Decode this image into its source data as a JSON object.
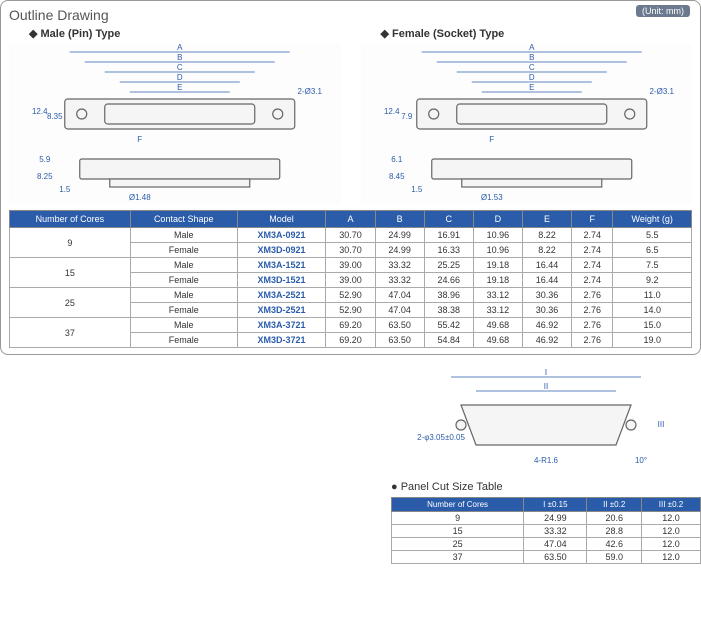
{
  "title": "Outline Drawing",
  "unit": "(Unit: mm)",
  "male_header": "Male (Pin) Type",
  "female_header": "Female (Socket) Type",
  "dim_labels": {
    "a": "A",
    "b": "B",
    "c": "C",
    "d": "D",
    "e": "E",
    "f": "F",
    "h1": "12.4",
    "h2": "8.35",
    "h3": "5.9",
    "h4": "8.25",
    "h5": "1.5",
    "d1": "Ø1.48",
    "hole": "2-Ø3.1",
    "fh1": "12.4",
    "fh2": "7.9",
    "fh3": "6.1",
    "fh4": "8.45",
    "fh5": "1.5",
    "fd1": "Ø1.53"
  },
  "main_headers": [
    "Number of Cores",
    "Contact Shape",
    "Model",
    "A",
    "B",
    "C",
    "D",
    "E",
    "F",
    "Weight (g)"
  ],
  "groups": [
    {
      "cores": "9",
      "rows": [
        {
          "shape": "Male",
          "model": "XM3A-0921",
          "a": "30.70",
          "b": "24.99",
          "c": "16.91",
          "d": "10.96",
          "e": "8.22",
          "f": "2.74",
          "w": "5.5"
        },
        {
          "shape": "Female",
          "model": "XM3D-0921",
          "a": "30.70",
          "b": "24.99",
          "c": "16.33",
          "d": "10.96",
          "e": "8.22",
          "f": "2.74",
          "w": "6.5"
        }
      ]
    },
    {
      "cores": "15",
      "rows": [
        {
          "shape": "Male",
          "model": "XM3A-1521",
          "a": "39.00",
          "b": "33.32",
          "c": "25.25",
          "d": "19.18",
          "e": "16.44",
          "f": "2.74",
          "w": "7.5"
        },
        {
          "shape": "Female",
          "model": "XM3D-1521",
          "a": "39.00",
          "b": "33.32",
          "c": "24.66",
          "d": "19.18",
          "e": "16.44",
          "f": "2.74",
          "w": "9.2"
        }
      ]
    },
    {
      "cores": "25",
      "rows": [
        {
          "shape": "Male",
          "model": "XM3A-2521",
          "a": "52.90",
          "b": "47.04",
          "c": "38.96",
          "d": "33.12",
          "e": "30.36",
          "f": "2.76",
          "w": "11.0"
        },
        {
          "shape": "Female",
          "model": "XM3D-2521",
          "a": "52.90",
          "b": "47.04",
          "c": "38.38",
          "d": "33.12",
          "e": "30.36",
          "f": "2.76",
          "w": "14.0"
        }
      ]
    },
    {
      "cores": "37",
      "rows": [
        {
          "shape": "Male",
          "model": "XM3A-3721",
          "a": "69.20",
          "b": "63.50",
          "c": "55.42",
          "d": "49.68",
          "e": "46.92",
          "f": "2.76",
          "w": "15.0"
        },
        {
          "shape": "Female",
          "model": "XM3D-3721",
          "a": "69.20",
          "b": "63.50",
          "c": "54.84",
          "d": "49.68",
          "e": "46.92",
          "f": "2.76",
          "w": "19.0"
        }
      ]
    }
  ],
  "panel_cut": {
    "title": "Panel Cut Size Table",
    "dims": {
      "i": "I",
      "ii": "II",
      "iii": "III",
      "hole": "2-φ3.05±0.05",
      "rad": "4-R1.6",
      "ang": "10°"
    },
    "headers": [
      "Number of Cores",
      "I ±0.15",
      "II ±0.2",
      "III ±0.2"
    ],
    "rows": [
      [
        "9",
        "24.99",
        "20.6",
        "12.0"
      ],
      [
        "15",
        "33.32",
        "28.8",
        "12.0"
      ],
      [
        "25",
        "47.04",
        "42.6",
        "12.0"
      ],
      [
        "37",
        "63.50",
        "59.0",
        "12.0"
      ]
    ]
  }
}
